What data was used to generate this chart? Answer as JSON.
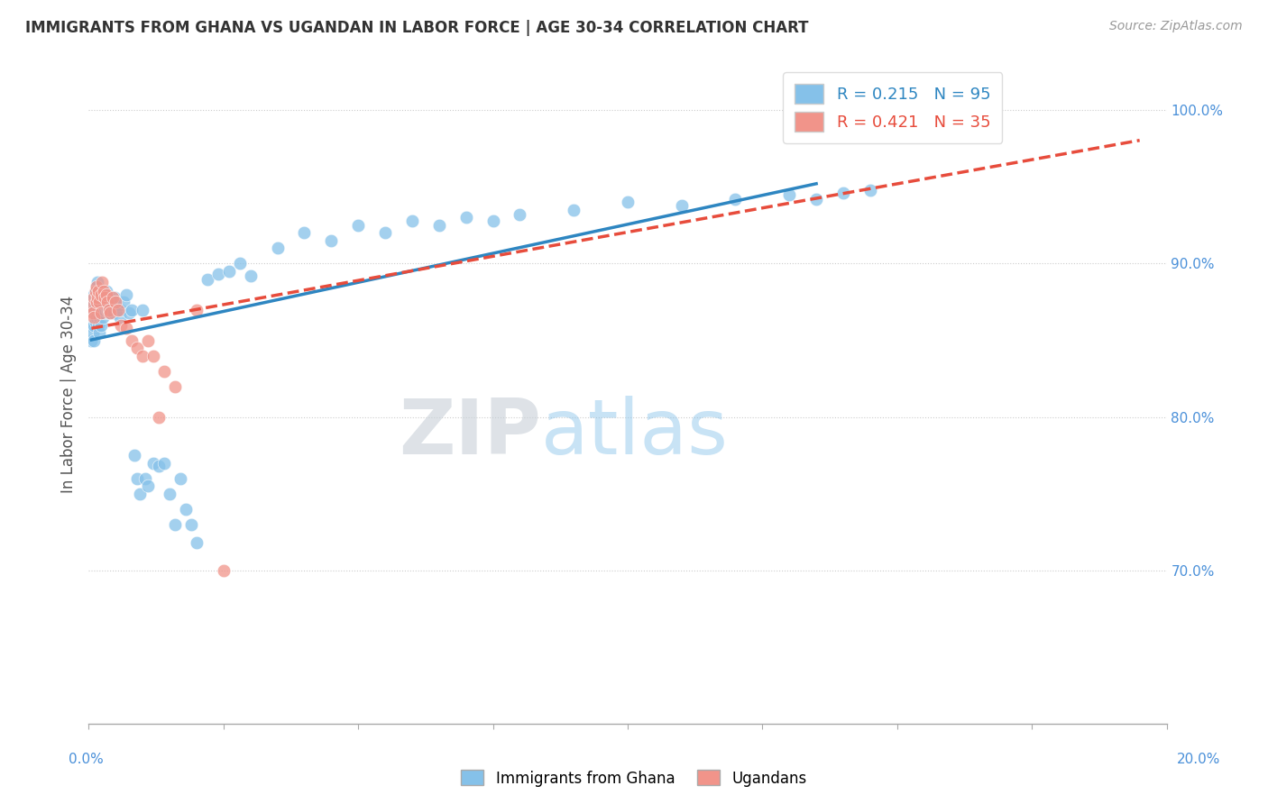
{
  "title": "IMMIGRANTS FROM GHANA VS UGANDAN IN LABOR FORCE | AGE 30-34 CORRELATION CHART",
  "source": "Source: ZipAtlas.com",
  "ylabel": "In Labor Force | Age 30-34",
  "xlim": [
    0.0,
    0.2
  ],
  "ylim": [
    0.6,
    1.03
  ],
  "ghana_R": 0.215,
  "ghana_N": 95,
  "uganda_R": 0.421,
  "uganda_N": 35,
  "ghana_color": "#85C1E9",
  "uganda_color": "#F1948A",
  "ghana_line_color": "#2E86C1",
  "uganda_line_color": "#E74C3C",
  "watermark_zip_color": "#BDC3C7",
  "watermark_atlas_color": "#85C1E9",
  "ghana_x": [
    0.0005,
    0.0005,
    0.0005,
    0.0008,
    0.0008,
    0.001,
    0.001,
    0.001,
    0.001,
    0.0012,
    0.0012,
    0.0012,
    0.0014,
    0.0014,
    0.0015,
    0.0015,
    0.0015,
    0.0016,
    0.0016,
    0.0016,
    0.0018,
    0.0018,
    0.002,
    0.002,
    0.002,
    0.0022,
    0.0022,
    0.0022,
    0.0024,
    0.0024,
    0.0025,
    0.0026,
    0.0026,
    0.0028,
    0.0028,
    0.003,
    0.003,
    0.0032,
    0.0032,
    0.0034,
    0.0035,
    0.0036,
    0.0038,
    0.004,
    0.0042,
    0.0044,
    0.0046,
    0.0048,
    0.005,
    0.0052,
    0.0055,
    0.0058,
    0.006,
    0.0065,
    0.007,
    0.0075,
    0.008,
    0.0085,
    0.009,
    0.0095,
    0.01,
    0.0105,
    0.011,
    0.012,
    0.013,
    0.014,
    0.015,
    0.016,
    0.017,
    0.018,
    0.019,
    0.02,
    0.022,
    0.024,
    0.026,
    0.028,
    0.03,
    0.035,
    0.04,
    0.045,
    0.05,
    0.055,
    0.06,
    0.065,
    0.07,
    0.075,
    0.08,
    0.09,
    0.1,
    0.11,
    0.12,
    0.13,
    0.135,
    0.14,
    0.145
  ],
  "ghana_y": [
    0.87,
    0.86,
    0.85,
    0.875,
    0.855,
    0.88,
    0.87,
    0.86,
    0.85,
    0.882,
    0.872,
    0.862,
    0.878,
    0.868,
    0.885,
    0.875,
    0.865,
    0.888,
    0.878,
    0.868,
    0.87,
    0.86,
    0.875,
    0.865,
    0.855,
    0.88,
    0.87,
    0.86,
    0.878,
    0.868,
    0.882,
    0.875,
    0.865,
    0.878,
    0.868,
    0.88,
    0.87,
    0.882,
    0.872,
    0.878,
    0.87,
    0.875,
    0.868,
    0.872,
    0.87,
    0.875,
    0.868,
    0.878,
    0.872,
    0.875,
    0.87,
    0.865,
    0.87,
    0.875,
    0.88,
    0.868,
    0.87,
    0.775,
    0.76,
    0.75,
    0.87,
    0.76,
    0.755,
    0.77,
    0.768,
    0.77,
    0.75,
    0.73,
    0.76,
    0.74,
    0.73,
    0.718,
    0.89,
    0.893,
    0.895,
    0.9,
    0.892,
    0.91,
    0.92,
    0.915,
    0.925,
    0.92,
    0.928,
    0.925,
    0.93,
    0.928,
    0.932,
    0.935,
    0.94,
    0.938,
    0.942,
    0.945,
    0.942,
    0.946,
    0.948
  ],
  "uganda_x": [
    0.0005,
    0.0008,
    0.001,
    0.001,
    0.0012,
    0.0014,
    0.0015,
    0.0016,
    0.0018,
    0.002,
    0.0022,
    0.0022,
    0.0025,
    0.0028,
    0.003,
    0.0032,
    0.0035,
    0.0038,
    0.004,
    0.0045,
    0.005,
    0.0055,
    0.006,
    0.007,
    0.008,
    0.009,
    0.01,
    0.011,
    0.012,
    0.013,
    0.014,
    0.016,
    0.02,
    0.025,
    0.13
  ],
  "uganda_y": [
    0.872,
    0.868,
    0.878,
    0.865,
    0.882,
    0.875,
    0.885,
    0.878,
    0.882,
    0.875,
    0.88,
    0.868,
    0.888,
    0.882,
    0.878,
    0.88,
    0.875,
    0.87,
    0.868,
    0.878,
    0.875,
    0.87,
    0.86,
    0.858,
    0.85,
    0.845,
    0.84,
    0.85,
    0.84,
    0.8,
    0.83,
    0.82,
    0.87,
    0.7,
    0.99
  ]
}
